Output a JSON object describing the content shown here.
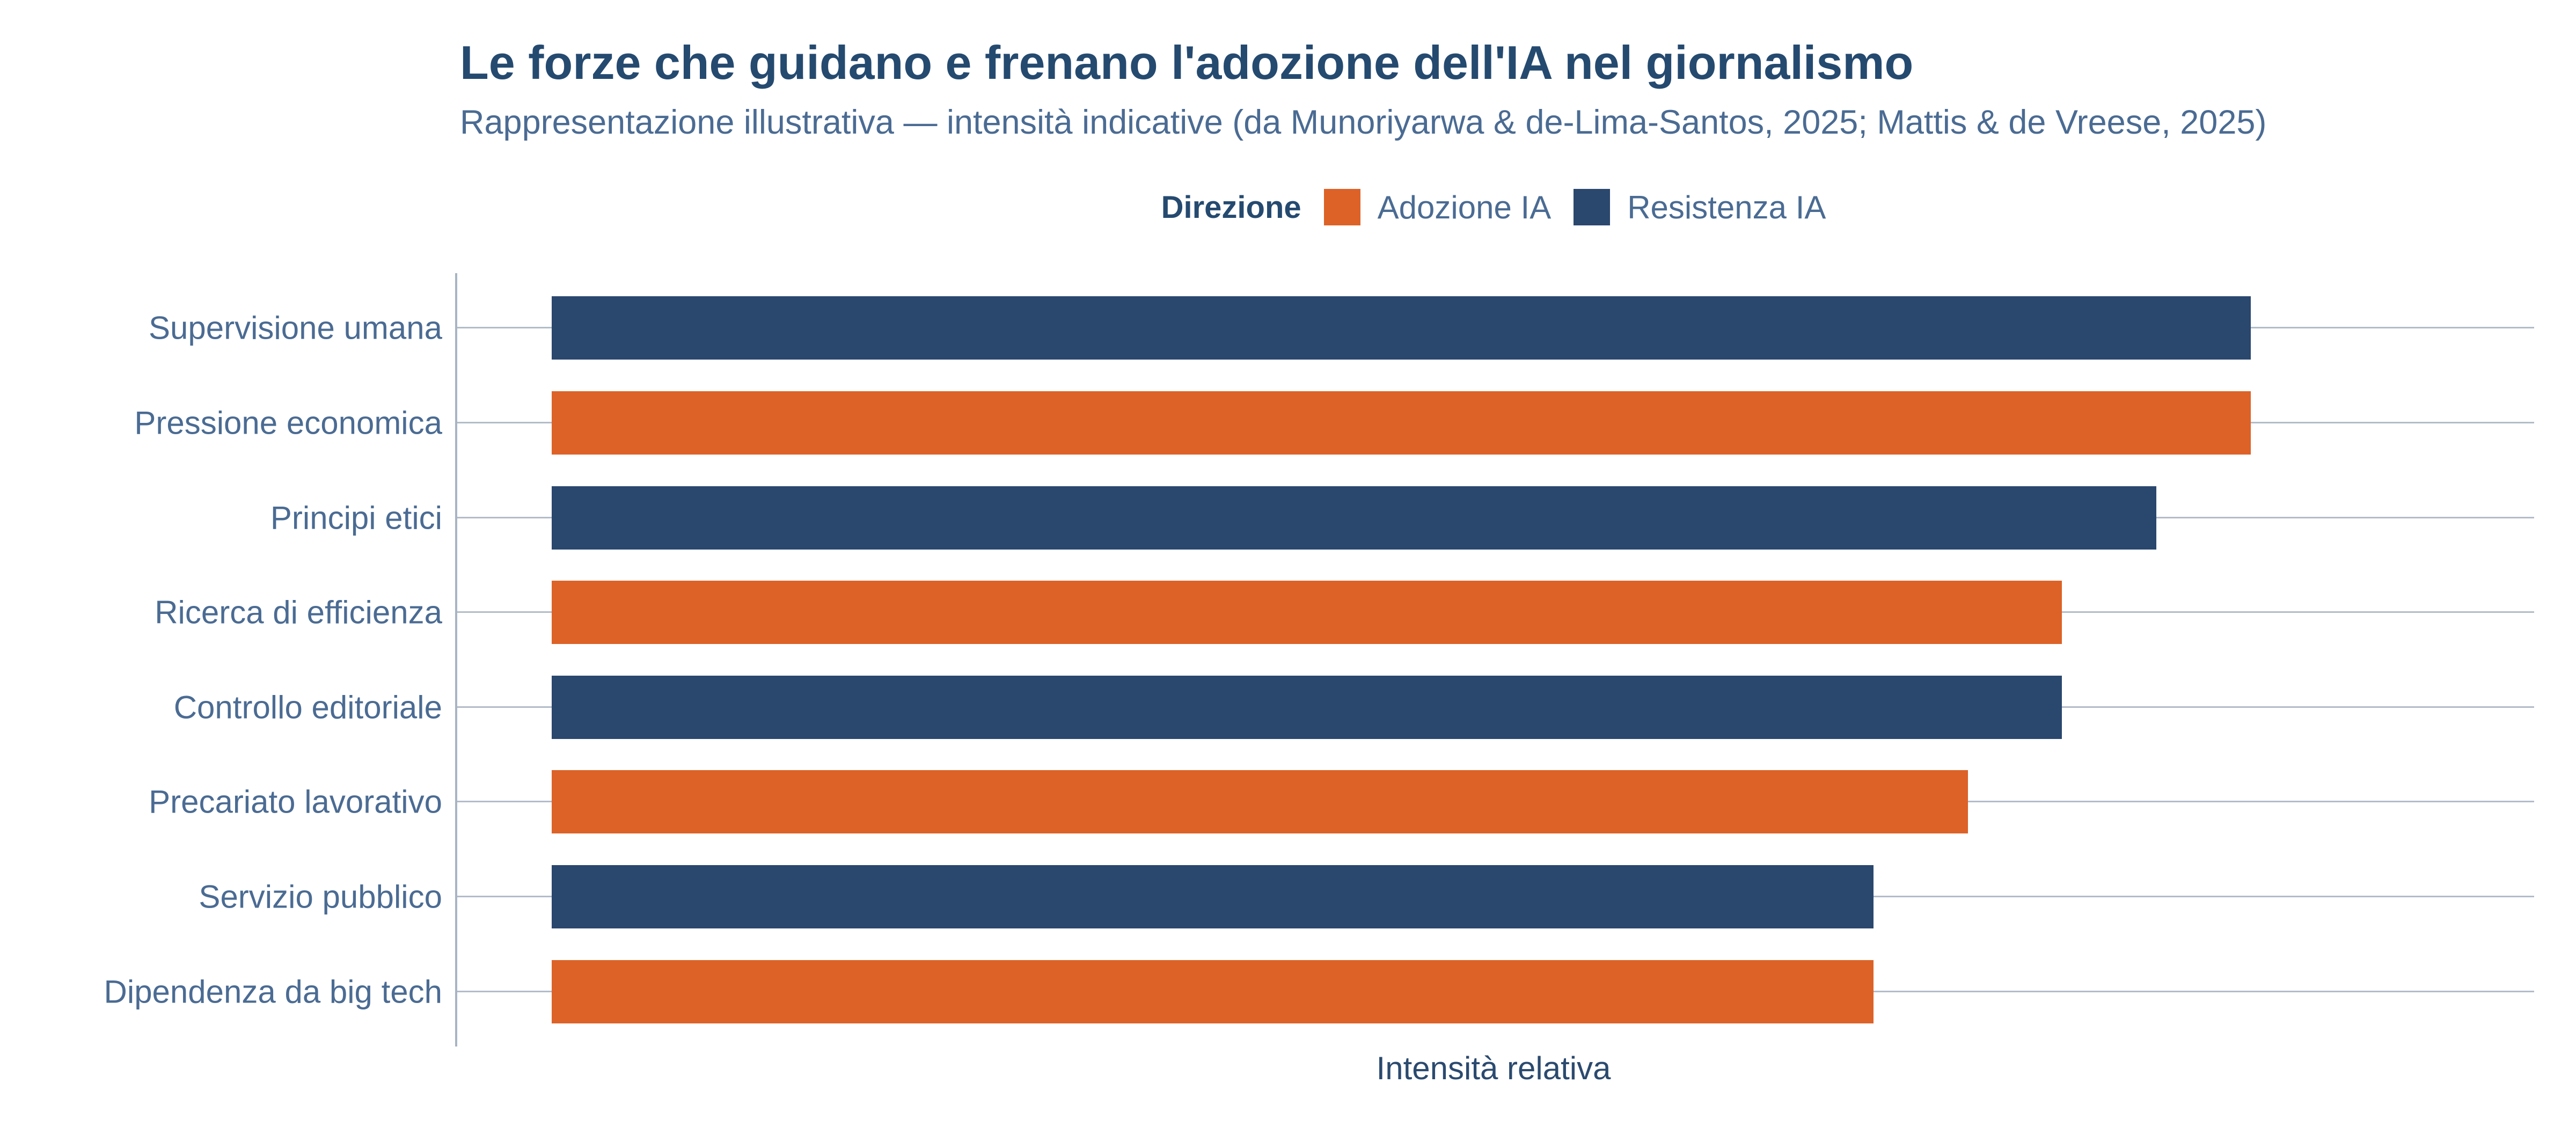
{
  "header": {
    "title": "Le forze che guidano e frenano l'adozione dell'IA nel giornalismo",
    "subtitle": "Rappresentazione illustrativa — intensità indicative (da Munoriyarwa & de-Lima-Santos, 2025; Mattis & de Vreese, 2025)"
  },
  "legend": {
    "title": "Direzione",
    "items": [
      {
        "label": "Adozione IA",
        "color": "#DD6227"
      },
      {
        "label": "Resistenza IA",
        "color": "#2A476E"
      }
    ]
  },
  "chart_data": {
    "type": "bar",
    "orientation": "horizontal",
    "title": "Le forze che guidano e frenano l'adozione dell'IA nel giornalismo",
    "subtitle": "Rappresentazione illustrativa — intensità indicative (da Munoriyarwa & de-Lima-Santos, 2025; Mattis & de Vreese, 2025)",
    "xlabel": "Intensità relativa",
    "ylabel": "",
    "xlim": [
      -0.5,
      10.5
    ],
    "bar_start": 0,
    "grid": "one horizontal rule per category",
    "x_tick_labels": "none",
    "legend_position": "top-center",
    "legend_title": "Direzione",
    "categories": [
      "Supervisione umana",
      "Pressione economica",
      "Principi etici",
      "Ricerca di efficienza",
      "Controllo editoriale",
      "Precariato lavorativo",
      "Servizio pubblico",
      "Dipendenza da big tech"
    ],
    "bars": [
      {
        "category": "Supervisione umana",
        "value": 9.0,
        "series": "Resistenza IA"
      },
      {
        "category": "Pressione economica",
        "value": 9.0,
        "series": "Adozione IA"
      },
      {
        "category": "Principi etici",
        "value": 8.5,
        "series": "Resistenza IA"
      },
      {
        "category": "Ricerca di efficienza",
        "value": 8.0,
        "series": "Adozione IA"
      },
      {
        "category": "Controllo editoriale",
        "value": 8.0,
        "series": "Resistenza IA"
      },
      {
        "category": "Precariato lavorativo",
        "value": 7.5,
        "series": "Adozione IA"
      },
      {
        "category": "Servizio pubblico",
        "value": 7.0,
        "series": "Resistenza IA"
      },
      {
        "category": "Dipendenza da big tech",
        "value": 7.0,
        "series": "Adozione IA"
      }
    ],
    "series_colors": {
      "Adozione IA": "#DD6227",
      "Resistenza IA": "#2A476E"
    }
  },
  "colors": {
    "adoption_orange": "#DD6227",
    "resistance_navy": "#2A476E",
    "title_text": "#254A70",
    "muted_text": "#4A6B93",
    "axis_line": "#A9B4C3",
    "gridline": "#B2BCC9",
    "background": "#FFFFFF"
  }
}
